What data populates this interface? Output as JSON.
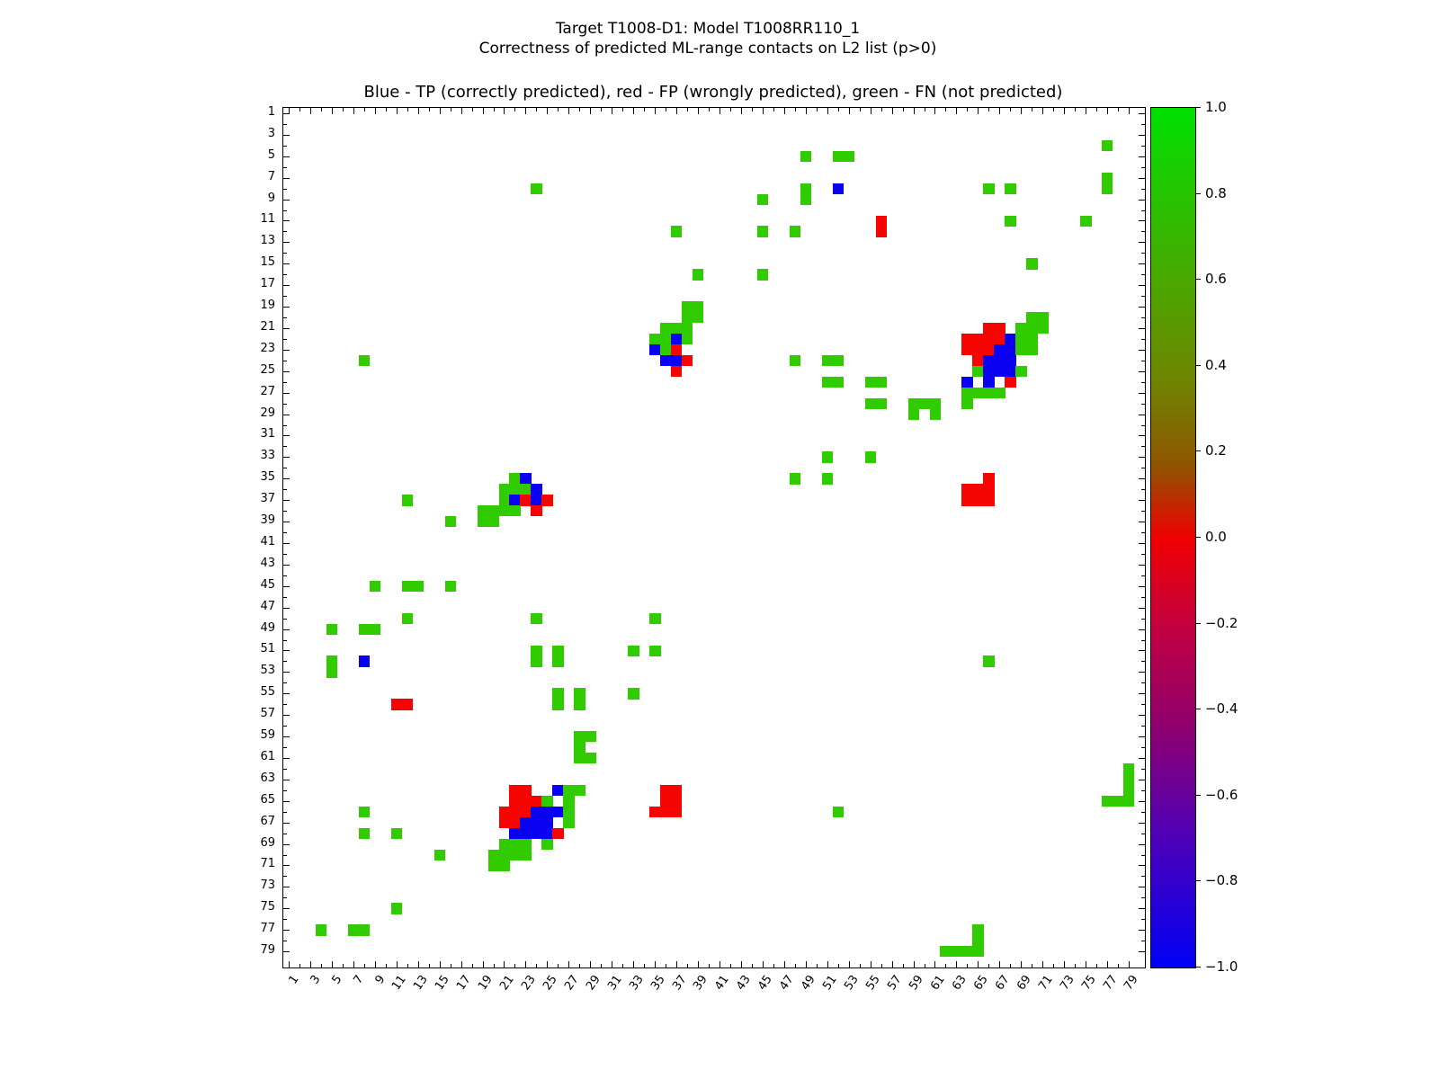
{
  "figure": {
    "suptitle_line1": "Target T1008-D1: Model T1008RR110_1",
    "suptitle_line2": "Correctness of predicted ML-range contacts on L2 list (p>0)"
  },
  "chart_data": {
    "type": "heatmap",
    "title": "Target T1008-D1: Model T1008RR110_1",
    "subtitle": "Correctness of predicted ML-range contacts on L2 list (p>0)",
    "axes_title": "Blue - TP (correctly predicted), red - FP (wrongly predicted), green - FN (not predicted)",
    "grid_size": 80,
    "x_range": [
      1,
      80
    ],
    "y_range": [
      1,
      80
    ],
    "x_tick_labels": [
      1,
      3,
      5,
      7,
      9,
      11,
      13,
      15,
      17,
      19,
      21,
      23,
      25,
      27,
      29,
      31,
      33,
      35,
      37,
      39,
      41,
      43,
      45,
      47,
      49,
      51,
      53,
      55,
      57,
      59,
      61,
      63,
      65,
      67,
      69,
      71,
      73,
      75,
      77,
      79
    ],
    "y_tick_labels": [
      1,
      3,
      5,
      7,
      9,
      11,
      13,
      15,
      17,
      19,
      21,
      23,
      25,
      27,
      29,
      31,
      33,
      35,
      37,
      39,
      41,
      43,
      45,
      47,
      49,
      51,
      53,
      55,
      57,
      59,
      61,
      63,
      65,
      67,
      69,
      71,
      73,
      75,
      77,
      79
    ],
    "legend": {
      "TP": {
        "meaning": "correctly predicted",
        "color": "#0a00f0",
        "value": -1
      },
      "FP": {
        "meaning": "wrongly predicted",
        "color": "#f50400",
        "value": 0
      },
      "FN": {
        "meaning": "not predicted",
        "color": "#30cc00",
        "value": 1
      }
    },
    "colorbar": {
      "tick_labels": [
        "1.0",
        "0.8",
        "0.6",
        "0.4",
        "0.2",
        "0.0",
        "−0.2",
        "−0.4",
        "−0.6",
        "−0.8",
        "−1.0"
      ],
      "tick_values": [
        1.0,
        0.8,
        0.6,
        0.4,
        0.2,
        0.0,
        -0.2,
        -0.4,
        -0.6,
        -0.8,
        -1.0
      ],
      "gradient_stops": [
        {
          "pos": 0.0,
          "color": "#00e000"
        },
        {
          "pos": 0.2,
          "color": "#4aa800"
        },
        {
          "pos": 0.32,
          "color": "#6f8400"
        },
        {
          "pos": 0.42,
          "color": "#915200"
        },
        {
          "pos": 0.5,
          "color": "#f00000"
        },
        {
          "pos": 0.6,
          "color": "#c4003e"
        },
        {
          "pos": 0.72,
          "color": "#8f006e"
        },
        {
          "pos": 0.84,
          "color": "#5200b4"
        },
        {
          "pos": 1.0,
          "color": "#0000f4"
        }
      ]
    },
    "cells": [
      [
        4,
        77,
        "FN"
      ],
      [
        5,
        49,
        "FN"
      ],
      [
        5,
        52,
        "FN"
      ],
      [
        5,
        53,
        "FN"
      ],
      [
        7,
        77,
        "FN"
      ],
      [
        8,
        24,
        "FN"
      ],
      [
        8,
        49,
        "FN"
      ],
      [
        8,
        52,
        "TP"
      ],
      [
        8,
        66,
        "FN"
      ],
      [
        8,
        68,
        "FN"
      ],
      [
        8,
        77,
        "FN"
      ],
      [
        9,
        45,
        "FN"
      ],
      [
        9,
        49,
        "FN"
      ],
      [
        11,
        56,
        "FP"
      ],
      [
        11,
        68,
        "FN"
      ],
      [
        11,
        75,
        "FN"
      ],
      [
        12,
        37,
        "FN"
      ],
      [
        12,
        45,
        "FN"
      ],
      [
        12,
        48,
        "FN"
      ],
      [
        12,
        56,
        "FP"
      ],
      [
        15,
        70,
        "FN"
      ],
      [
        16,
        39,
        "FN"
      ],
      [
        16,
        45,
        "FN"
      ],
      [
        19,
        38,
        "FN"
      ],
      [
        19,
        39,
        "FN"
      ],
      [
        20,
        38,
        "FN"
      ],
      [
        20,
        39,
        "FN"
      ],
      [
        20,
        70,
        "FN"
      ],
      [
        20,
        71,
        "FN"
      ],
      [
        21,
        36,
        "FN"
      ],
      [
        21,
        37,
        "FN"
      ],
      [
        21,
        38,
        "FN"
      ],
      [
        21,
        66,
        "FP"
      ],
      [
        21,
        67,
        "FP"
      ],
      [
        21,
        69,
        "FN"
      ],
      [
        21,
        70,
        "FN"
      ],
      [
        21,
        71,
        "FN"
      ],
      [
        22,
        35,
        "FN"
      ],
      [
        22,
        36,
        "FN"
      ],
      [
        22,
        37,
        "TP"
      ],
      [
        22,
        38,
        "FN"
      ],
      [
        22,
        64,
        "FP"
      ],
      [
        22,
        65,
        "FP"
      ],
      [
        22,
        66,
        "FP"
      ],
      [
        22,
        67,
        "FP"
      ],
      [
        22,
        68,
        "TP"
      ],
      [
        22,
        69,
        "FN"
      ],
      [
        22,
        70,
        "FN"
      ],
      [
        23,
        35,
        "TP"
      ],
      [
        23,
        36,
        "FN"
      ],
      [
        23,
        37,
        "FP"
      ],
      [
        23,
        64,
        "FP"
      ],
      [
        23,
        65,
        "FP"
      ],
      [
        23,
        66,
        "FP"
      ],
      [
        23,
        67,
        "TP"
      ],
      [
        23,
        68,
        "TP"
      ],
      [
        23,
        69,
        "FN"
      ],
      [
        23,
        70,
        "FN"
      ],
      [
        24,
        8,
        "FN"
      ],
      [
        24,
        36,
        "TP"
      ],
      [
        24,
        37,
        "TP"
      ],
      [
        24,
        38,
        "FP"
      ],
      [
        24,
        48,
        "FN"
      ],
      [
        24,
        51,
        "FN"
      ],
      [
        24,
        52,
        "FN"
      ],
      [
        24,
        65,
        "FP"
      ],
      [
        24,
        66,
        "TP"
      ],
      [
        24,
        67,
        "TP"
      ],
      [
        24,
        68,
        "TP"
      ],
      [
        25,
        37,
        "FP"
      ],
      [
        25,
        65,
        "FN"
      ],
      [
        25,
        66,
        "TP"
      ],
      [
        25,
        67,
        "TP"
      ],
      [
        25,
        68,
        "TP"
      ],
      [
        25,
        69,
        "FN"
      ],
      [
        26,
        51,
        "FN"
      ],
      [
        26,
        52,
        "FN"
      ],
      [
        26,
        55,
        "FN"
      ],
      [
        26,
        56,
        "FN"
      ],
      [
        26,
        64,
        "TP"
      ],
      [
        26,
        66,
        "TP"
      ],
      [
        26,
        68,
        "FP"
      ],
      [
        27,
        64,
        "FN"
      ],
      [
        27,
        65,
        "FN"
      ],
      [
        27,
        66,
        "FN"
      ],
      [
        27,
        67,
        "FN"
      ],
      [
        28,
        55,
        "FN"
      ],
      [
        28,
        56,
        "FN"
      ],
      [
        28,
        59,
        "FN"
      ],
      [
        28,
        60,
        "FN"
      ],
      [
        28,
        61,
        "FN"
      ],
      [
        28,
        64,
        "FN"
      ],
      [
        29,
        59,
        "FN"
      ],
      [
        29,
        61,
        "FN"
      ],
      [
        33,
        51,
        "FN"
      ],
      [
        33,
        55,
        "FN"
      ],
      [
        35,
        22,
        "FN"
      ],
      [
        35,
        23,
        "TP"
      ],
      [
        35,
        48,
        "FN"
      ],
      [
        35,
        51,
        "FN"
      ],
      [
        35,
        66,
        "FP"
      ],
      [
        36,
        21,
        "FN"
      ],
      [
        36,
        22,
        "FN"
      ],
      [
        36,
        23,
        "FN"
      ],
      [
        36,
        24,
        "TP"
      ],
      [
        36,
        64,
        "FP"
      ],
      [
        36,
        65,
        "FP"
      ],
      [
        36,
        66,
        "FP"
      ],
      [
        37,
        12,
        "FN"
      ],
      [
        37,
        21,
        "FN"
      ],
      [
        37,
        22,
        "TP"
      ],
      [
        37,
        23,
        "FP"
      ],
      [
        37,
        24,
        "TP"
      ],
      [
        37,
        25,
        "FP"
      ],
      [
        37,
        64,
        "FP"
      ],
      [
        37,
        65,
        "FP"
      ],
      [
        37,
        66,
        "FP"
      ],
      [
        38,
        19,
        "FN"
      ],
      [
        38,
        20,
        "FN"
      ],
      [
        38,
        21,
        "FN"
      ],
      [
        38,
        22,
        "FN"
      ],
      [
        38,
        24,
        "FP"
      ],
      [
        39,
        16,
        "FN"
      ],
      [
        39,
        19,
        "FN"
      ],
      [
        39,
        20,
        "FN"
      ],
      [
        45,
        9,
        "FN"
      ],
      [
        45,
        12,
        "FN"
      ],
      [
        45,
        13,
        "FN"
      ],
      [
        45,
        16,
        "FN"
      ],
      [
        48,
        12,
        "FN"
      ],
      [
        48,
        24,
        "FN"
      ],
      [
        48,
        35,
        "FN"
      ],
      [
        49,
        5,
        "FN"
      ],
      [
        49,
        8,
        "FN"
      ],
      [
        49,
        9,
        "FN"
      ],
      [
        51,
        24,
        "FN"
      ],
      [
        51,
        26,
        "FN"
      ],
      [
        51,
        33,
        "FN"
      ],
      [
        51,
        35,
        "FN"
      ],
      [
        52,
        5,
        "FN"
      ],
      [
        52,
        8,
        "TP"
      ],
      [
        52,
        24,
        "FN"
      ],
      [
        52,
        26,
        "FN"
      ],
      [
        52,
        66,
        "FN"
      ],
      [
        53,
        5,
        "FN"
      ],
      [
        55,
        26,
        "FN"
      ],
      [
        55,
        28,
        "FN"
      ],
      [
        55,
        33,
        "FN"
      ],
      [
        56,
        11,
        "FP"
      ],
      [
        56,
        12,
        "FP"
      ],
      [
        56,
        26,
        "FN"
      ],
      [
        56,
        28,
        "FN"
      ],
      [
        59,
        28,
        "FN"
      ],
      [
        59,
        29,
        "FN"
      ],
      [
        60,
        28,
        "FN"
      ],
      [
        61,
        28,
        "FN"
      ],
      [
        61,
        29,
        "FN"
      ],
      [
        62,
        79,
        "FN"
      ],
      [
        63,
        79,
        "FN"
      ],
      [
        64,
        22,
        "FP"
      ],
      [
        64,
        23,
        "FP"
      ],
      [
        64,
        26,
        "TP"
      ],
      [
        64,
        27,
        "FN"
      ],
      [
        64,
        28,
        "FN"
      ],
      [
        64,
        36,
        "FP"
      ],
      [
        64,
        37,
        "FP"
      ],
      [
        64,
        79,
        "FN"
      ],
      [
        65,
        22,
        "FP"
      ],
      [
        65,
        23,
        "FP"
      ],
      [
        65,
        24,
        "FP"
      ],
      [
        65,
        25,
        "FN"
      ],
      [
        65,
        27,
        "FN"
      ],
      [
        65,
        36,
        "FP"
      ],
      [
        65,
        37,
        "FP"
      ],
      [
        65,
        77,
        "FN"
      ],
      [
        65,
        78,
        "FN"
      ],
      [
        65,
        79,
        "FN"
      ],
      [
        66,
        8,
        "FN"
      ],
      [
        66,
        21,
        "FP"
      ],
      [
        66,
        22,
        "FP"
      ],
      [
        66,
        23,
        "FP"
      ],
      [
        66,
        24,
        "TP"
      ],
      [
        66,
        25,
        "TP"
      ],
      [
        66,
        26,
        "TP"
      ],
      [
        66,
        27,
        "FN"
      ],
      [
        66,
        35,
        "FP"
      ],
      [
        66,
        36,
        "FP"
      ],
      [
        66,
        37,
        "FP"
      ],
      [
        66,
        52,
        "FN"
      ],
      [
        67,
        21,
        "FP"
      ],
      [
        67,
        22,
        "FP"
      ],
      [
        67,
        23,
        "TP"
      ],
      [
        67,
        24,
        "TP"
      ],
      [
        67,
        25,
        "TP"
      ],
      [
        67,
        27,
        "FN"
      ],
      [
        68,
        8,
        "FN"
      ],
      [
        68,
        11,
        "FN"
      ],
      [
        68,
        22,
        "TP"
      ],
      [
        68,
        23,
        "TP"
      ],
      [
        68,
        24,
        "TP"
      ],
      [
        68,
        25,
        "TP"
      ],
      [
        68,
        26,
        "FP"
      ],
      [
        69,
        21,
        "FN"
      ],
      [
        69,
        22,
        "FN"
      ],
      [
        69,
        23,
        "FN"
      ],
      [
        69,
        25,
        "FN"
      ],
      [
        70,
        15,
        "FN"
      ],
      [
        70,
        20,
        "FN"
      ],
      [
        70,
        21,
        "FN"
      ],
      [
        70,
        22,
        "FN"
      ],
      [
        70,
        23,
        "FN"
      ],
      [
        71,
        20,
        "FN"
      ],
      [
        71,
        21,
        "FN"
      ],
      [
        75,
        11,
        "FN"
      ],
      [
        77,
        4,
        "FN"
      ],
      [
        77,
        7,
        "FN"
      ],
      [
        77,
        8,
        "FN"
      ],
      [
        77,
        65,
        "FN"
      ],
      [
        78,
        65,
        "FN"
      ],
      [
        79,
        62,
        "FN"
      ],
      [
        79,
        63,
        "FN"
      ],
      [
        79,
        64,
        "FN"
      ],
      [
        79,
        65,
        "FN"
      ]
    ]
  }
}
